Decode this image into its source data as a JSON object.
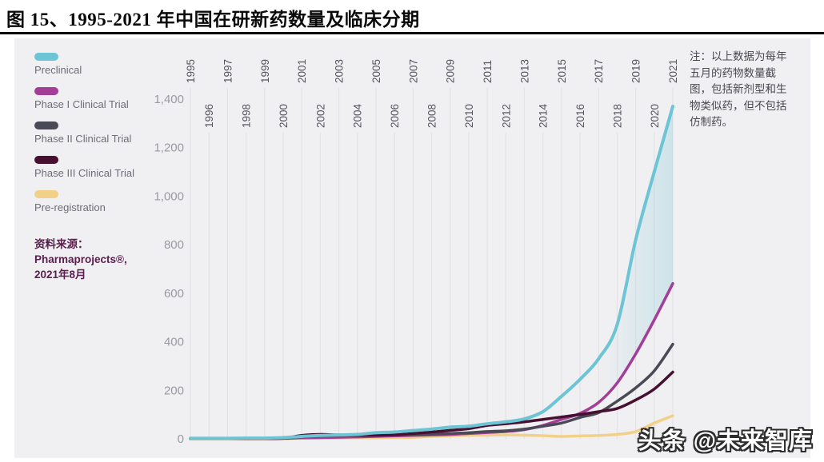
{
  "title": "图 15、1995-2021 年中国在研新药数量及临床分期",
  "note": "注：以上数据为每年\n五月的药物数量截\n图，包括新剂型和生\n物类似药，但不包括\n仿制药。",
  "source": {
    "lines": [
      "资料来源：",
      "Pharmaprojects®,",
      "2021年8月"
    ]
  },
  "watermark": "头条 @未来智库",
  "colors": {
    "panel_bg": "#f0eff1",
    "grid": "#e3e2e5",
    "y_tick_label": "#9b9aa3",
    "x_tick_label": "#56555f",
    "legend_label": "#6e6d78",
    "note_text": "#494851",
    "source_text": "#5a2150",
    "title_rule": "#000000",
    "area_fill": "#6cc4d4"
  },
  "chart_data": {
    "type": "line",
    "x": [
      1995,
      1996,
      1997,
      1998,
      1999,
      2000,
      2001,
      2002,
      2003,
      2004,
      2005,
      2006,
      2007,
      2008,
      2009,
      2010,
      2011,
      2012,
      2013,
      2014,
      2015,
      2016,
      2017,
      2018,
      2019,
      2020,
      2021
    ],
    "series": [
      {
        "name": "Preclinical",
        "color": "#6cc4d4",
        "values": [
          2,
          2,
          2,
          3,
          3,
          5,
          10,
          14,
          16,
          18,
          25,
          28,
          34,
          40,
          48,
          52,
          62,
          70,
          82,
          112,
          175,
          245,
          330,
          470,
          820,
          1100,
          1370
        ]
      },
      {
        "name": "Phase I Clinical Trial",
        "color": "#a33e98",
        "values": [
          1,
          1,
          1,
          1,
          2,
          2,
          4,
          5,
          6,
          8,
          10,
          12,
          14,
          16,
          18,
          22,
          26,
          30,
          38,
          55,
          80,
          105,
          150,
          230,
          350,
          490,
          640
        ]
      },
      {
        "name": "Phase II Clinical Trial",
        "color": "#4a4a57",
        "values": [
          2,
          2,
          2,
          2,
          2,
          3,
          8,
          12,
          13,
          14,
          15,
          16,
          18,
          20,
          22,
          25,
          30,
          33,
          40,
          52,
          65,
          88,
          108,
          155,
          210,
          280,
          390
        ]
      },
      {
        "name": "Phase III Clinical Trial",
        "color": "#471031",
        "values": [
          1,
          1,
          1,
          1,
          1,
          2,
          14,
          18,
          16,
          15,
          15,
          17,
          22,
          28,
          35,
          42,
          55,
          62,
          70,
          80,
          90,
          100,
          112,
          125,
          160,
          205,
          275
        ]
      },
      {
        "name": "Pre-registration",
        "color": "#f0d187",
        "values": [
          0,
          0,
          0,
          0,
          0,
          1,
          2,
          3,
          3,
          4,
          4,
          5,
          6,
          10,
          12,
          14,
          15,
          16,
          15,
          13,
          10,
          12,
          14,
          18,
          30,
          65,
          95
        ]
      }
    ],
    "title": "",
    "xlabel": "",
    "ylabel": "",
    "ylim": [
      0,
      1400
    ],
    "yticks": [
      0,
      200,
      400,
      600,
      800,
      1000,
      1200,
      1400
    ],
    "grid": "vertical-only",
    "legend_position": "left",
    "area_fill": {
      "between": [
        "Preclinical",
        "Phase I Clinical Trial"
      ],
      "from_year": 2017,
      "to_year": 2021,
      "style": "gradient-left-transparent"
    }
  }
}
